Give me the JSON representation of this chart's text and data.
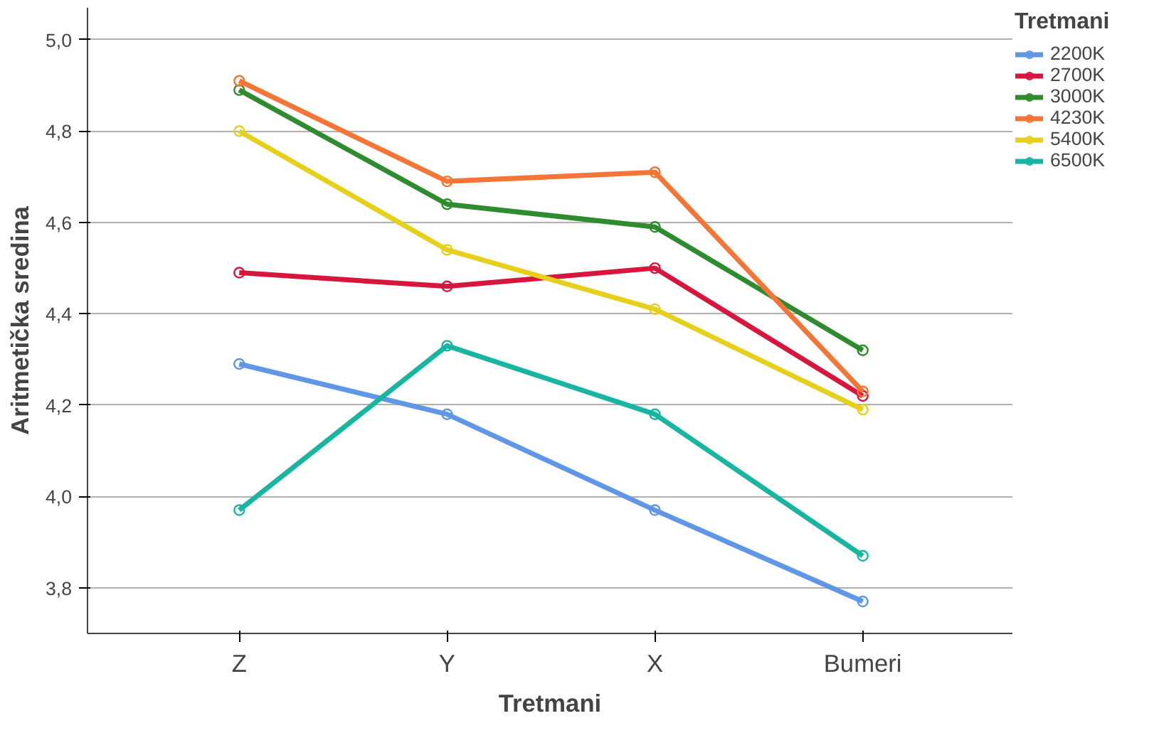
{
  "chart_data": {
    "type": "line",
    "xlabel": "Tretmani",
    "ylabel": "Aritmetička sredina",
    "legend_title": "Tretmani",
    "categories": [
      "Z",
      "Y",
      "X",
      "Bumeri"
    ],
    "series": [
      {
        "name": "2200K",
        "color": "#5f97e6",
        "values": [
          4.29,
          4.18,
          3.97,
          3.77
        ]
      },
      {
        "name": "2700K",
        "color": "#d6163d",
        "values": [
          4.49,
          4.46,
          4.5,
          4.22
        ]
      },
      {
        "name": "3000K",
        "color": "#2e8b2e",
        "values": [
          4.89,
          4.64,
          4.59,
          4.32
        ]
      },
      {
        "name": "4230K",
        "color": "#f57536",
        "values": [
          4.91,
          4.69,
          4.71,
          4.23
        ]
      },
      {
        "name": "5400K",
        "color": "#e6d01c",
        "values": [
          4.8,
          4.54,
          4.41,
          4.19
        ]
      },
      {
        "name": "6500K",
        "color": "#17b5a2",
        "values": [
          3.97,
          4.33,
          4.18,
          3.87
        ]
      }
    ],
    "ylim": [
      3.7,
      5.07
    ],
    "yticks": [
      {
        "value": 3.8,
        "label": "3,8"
      },
      {
        "value": 4.0,
        "label": "4,0"
      },
      {
        "value": 4.2,
        "label": "4,2"
      },
      {
        "value": 4.4,
        "label": "4,4"
      },
      {
        "value": 4.6,
        "label": "4,6"
      },
      {
        "value": 4.8,
        "label": "4,8"
      },
      {
        "value": 5.0,
        "label": "5,0"
      }
    ],
    "grid": "y",
    "legend": "top right",
    "marker": "circle",
    "line_style": "solid"
  }
}
